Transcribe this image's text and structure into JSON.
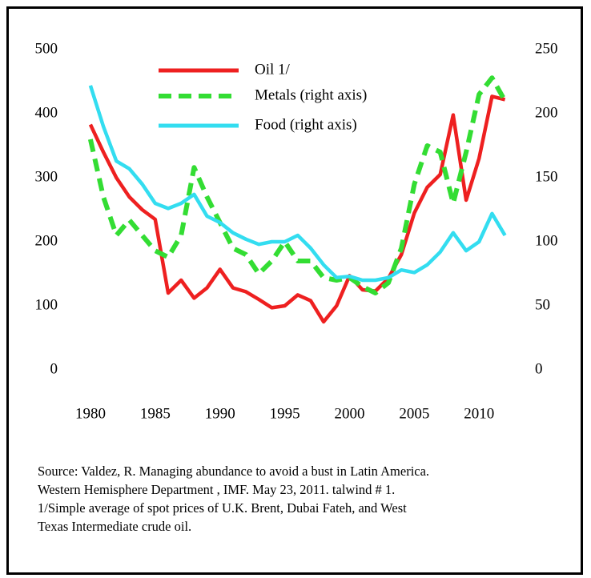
{
  "chart_data": {
    "type": "line",
    "x": [
      1980,
      1981,
      1982,
      1983,
      1984,
      1985,
      1986,
      1987,
      1988,
      1989,
      1990,
      1991,
      1992,
      1993,
      1994,
      1995,
      1996,
      1997,
      1998,
      1999,
      2000,
      2001,
      2002,
      2003,
      2004,
      2005,
      2006,
      2007,
      2008,
      2009,
      2010,
      2011,
      2012
    ],
    "series": [
      {
        "name": "Oil 1/",
        "color": "#ee2020",
        "dash": "solid",
        "values": [
          383,
          340,
          300,
          270,
          250,
          235,
          120,
          140,
          112,
          128,
          157,
          128,
          122,
          110,
          97,
          100,
          117,
          108,
          75,
          100,
          147,
          125,
          123,
          143,
          180,
          245,
          285,
          305,
          398,
          265,
          330,
          427,
          422
        ]
      },
      {
        "name": "Metals (right axis)",
        "color": "#33dd33",
        "dash": "dashed",
        "axis": "y2",
        "values": [
          180,
          135,
          105,
          117,
          105,
          93,
          88,
          105,
          158,
          135,
          115,
          95,
          90,
          75,
          85,
          100,
          85,
          85,
          72,
          70,
          72,
          65,
          60,
          68,
          95,
          145,
          175,
          170,
          130,
          170,
          215,
          228,
          210
        ]
      },
      {
        "name": "Food (right axis)",
        "color": "#33ddf0",
        "dash": "solid",
        "axis": "y2",
        "values": [
          222,
          190,
          163,
          157,
          145,
          130,
          126,
          130,
          137,
          120,
          115,
          107,
          102,
          98,
          100,
          100,
          105,
          95,
          82,
          72,
          73,
          70,
          70,
          72,
          78,
          76,
          82,
          92,
          107,
          93,
          100,
          122,
          105
        ]
      }
    ],
    "xlim": [
      1979.2,
      2013.2
    ],
    "xticks": [
      1980,
      1985,
      1990,
      1995,
      2000,
      2005,
      2010
    ],
    "ylim": [
      0,
      500
    ],
    "yticks": [
      0,
      100,
      200,
      300,
      400,
      500
    ],
    "y2lim": [
      0,
      250
    ],
    "y2ticks": [
      0,
      50,
      100,
      150,
      200,
      250
    ],
    "grid": false,
    "legend": "top",
    "source": [
      "Source: Valdez, R.  Managing abundance to avoid a bust in Latin America.",
      "Western Hemisphere Department , IMF. May 23, 2011.  talwind # 1.",
      "1/Simple average  of spot prices of U.K. Brent, Dubai Fateh, and West",
      "Texas Intermediate crude oil."
    ]
  }
}
